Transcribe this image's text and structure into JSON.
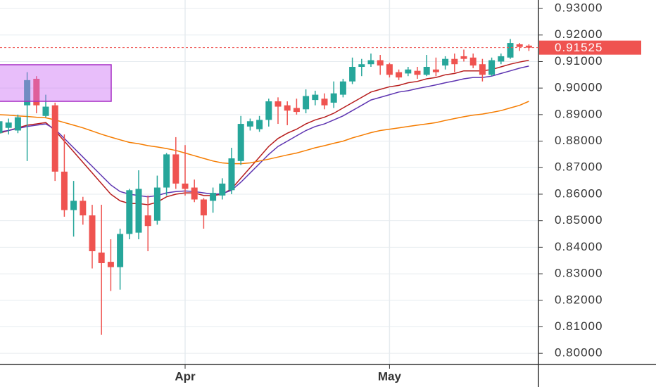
{
  "chart_data": {
    "type": "candlestick",
    "categories": [
      null,
      null,
      null,
      null,
      null,
      null,
      null,
      null,
      null,
      null,
      null,
      null,
      null,
      null,
      null,
      null,
      null,
      null,
      null,
      null,
      "Apr",
      null,
      null,
      null,
      null,
      null,
      null,
      null,
      null,
      null,
      null,
      null,
      null,
      null,
      null,
      null,
      null,
      null,
      null,
      null,
      null,
      null,
      "May",
      null,
      null,
      null,
      null,
      null,
      null,
      null,
      null,
      null,
      null,
      null,
      null,
      null,
      null,
      null
    ],
    "open": [
      0.883,
      0.885,
      0.884,
      0.8935,
      0.9035,
      0.8895,
      0.8935,
      0.8685,
      0.854,
      0.8575,
      0.852,
      0.838,
      0.8345,
      0.8325,
      0.845,
      0.8455,
      0.852,
      0.85,
      0.8625,
      0.875,
      0.864,
      0.8625,
      0.858,
      0.8575,
      0.8595,
      0.8615,
      0.8725,
      0.8855,
      0.8845,
      0.888,
      0.895,
      0.8935,
      0.8925,
      0.892,
      0.8955,
      0.896,
      0.8945,
      0.8975,
      0.9025,
      0.908,
      0.909,
      0.9105,
      0.909,
      0.906,
      0.9055,
      0.9065,
      0.905,
      0.907,
      0.9085,
      0.911,
      0.912,
      0.9115,
      0.909,
      0.905,
      0.91,
      0.9115,
      0.9165,
      0.916
    ],
    "high": [
      0.888,
      0.8885,
      0.89,
      0.906,
      0.9045,
      0.8975,
      0.8945,
      0.8825,
      0.865,
      0.859,
      0.856,
      0.856,
      0.843,
      0.847,
      0.862,
      0.869,
      0.8595,
      0.867,
      0.8755,
      0.8815,
      0.8785,
      0.8655,
      0.8585,
      0.8625,
      0.866,
      0.8775,
      0.8895,
      0.8885,
      0.8895,
      0.896,
      0.8965,
      0.895,
      0.896,
      0.8995,
      0.899,
      0.898,
      0.9025,
      0.9035,
      0.9115,
      0.911,
      0.913,
      0.9125,
      0.9095,
      0.907,
      0.908,
      0.908,
      0.9125,
      0.9115,
      0.912,
      0.913,
      0.9145,
      0.913,
      0.911,
      0.9115,
      0.913,
      0.9185,
      0.917,
      0.9165
    ],
    "low": [
      0.881,
      0.8825,
      0.883,
      0.8725,
      0.8905,
      0.889,
      0.865,
      0.8515,
      0.844,
      0.8485,
      0.832,
      0.807,
      0.8235,
      0.824,
      0.843,
      0.843,
      0.8385,
      0.8485,
      0.8595,
      0.862,
      0.8595,
      0.857,
      0.847,
      0.853,
      0.858,
      0.86,
      0.871,
      0.884,
      0.8835,
      0.8855,
      0.8865,
      0.886,
      0.89,
      0.8905,
      0.8935,
      0.892,
      0.8925,
      0.8965,
      0.9015,
      0.9045,
      0.908,
      0.905,
      0.904,
      0.903,
      0.9045,
      0.9035,
      0.9045,
      0.9045,
      0.907,
      0.906,
      0.91,
      0.9075,
      0.9025,
      0.9045,
      0.909,
      0.911,
      0.914,
      0.914
    ],
    "close": [
      0.8875,
      0.887,
      0.889,
      0.903,
      0.8935,
      0.893,
      0.8685,
      0.854,
      0.8575,
      0.852,
      0.8385,
      0.834,
      0.8325,
      0.845,
      0.8615,
      0.862,
      0.848,
      0.8625,
      0.875,
      0.864,
      0.862,
      0.858,
      0.852,
      0.8605,
      0.864,
      0.8735,
      0.8865,
      0.8875,
      0.888,
      0.895,
      0.893,
      0.8915,
      0.891,
      0.897,
      0.8975,
      0.8935,
      0.898,
      0.9025,
      0.908,
      0.909,
      0.9105,
      0.9085,
      0.905,
      0.904,
      0.907,
      0.905,
      0.908,
      0.906,
      0.911,
      0.909,
      0.911,
      0.9085,
      0.905,
      0.9105,
      0.912,
      0.917,
      0.9155,
      0.91525
    ],
    "up_color": "#26a69a",
    "down_color": "#ef5350",
    "moving_averages": [
      {
        "color": "#b71c1c",
        "values": [
          0.883,
          0.884,
          0.885,
          0.886,
          0.8865,
          0.887,
          0.884,
          0.88,
          0.876,
          0.872,
          0.868,
          0.864,
          0.86,
          0.8575,
          0.8565,
          0.8565,
          0.856,
          0.857,
          0.859,
          0.86,
          0.8605,
          0.8605,
          0.8595,
          0.8595,
          0.86,
          0.862,
          0.866,
          0.87,
          0.874,
          0.878,
          0.881,
          0.883,
          0.8845,
          0.8865,
          0.888,
          0.889,
          0.8905,
          0.8925,
          0.8945,
          0.8965,
          0.8985,
          0.8995,
          0.9005,
          0.901,
          0.902,
          0.9025,
          0.9035,
          0.904,
          0.905,
          0.9055,
          0.9065,
          0.9065,
          0.9065,
          0.907,
          0.908,
          0.909,
          0.9098,
          0.9105
        ]
      },
      {
        "color": "#5e35b1",
        "values": [
          0.8835,
          0.884,
          0.8848,
          0.8855,
          0.886,
          0.8865,
          0.8845,
          0.881,
          0.8775,
          0.874,
          0.8705,
          0.867,
          0.8635,
          0.861,
          0.86,
          0.8595,
          0.859,
          0.8595,
          0.8605,
          0.861,
          0.8612,
          0.861,
          0.8605,
          0.86,
          0.8602,
          0.8615,
          0.8645,
          0.868,
          0.8715,
          0.875,
          0.878,
          0.88,
          0.882,
          0.884,
          0.8855,
          0.8865,
          0.888,
          0.8895,
          0.8915,
          0.8935,
          0.8955,
          0.8965,
          0.8975,
          0.8985,
          0.899,
          0.8998,
          0.9005,
          0.9012,
          0.902,
          0.9027,
          0.9035,
          0.904,
          0.904,
          0.9045,
          0.9055,
          0.9065,
          0.9075,
          0.9083
        ]
      },
      {
        "color": "#f57c00",
        "values": [
          0.89,
          0.8898,
          0.8895,
          0.8893,
          0.889,
          0.8888,
          0.888,
          0.887,
          0.886,
          0.885,
          0.8838,
          0.8826,
          0.8815,
          0.8805,
          0.8795,
          0.879,
          0.8783,
          0.8778,
          0.8772,
          0.8765,
          0.8755,
          0.8745,
          0.8735,
          0.8725,
          0.8718,
          0.8715,
          0.8715,
          0.8718,
          0.8725,
          0.8732,
          0.874,
          0.8748,
          0.8755,
          0.8765,
          0.8775,
          0.8783,
          0.8792,
          0.88,
          0.8812,
          0.8822,
          0.8832,
          0.884,
          0.8845,
          0.885,
          0.8855,
          0.886,
          0.8865,
          0.887,
          0.8878,
          0.8885,
          0.8892,
          0.8898,
          0.8902,
          0.8908,
          0.8915,
          0.8925,
          0.8935,
          0.895
        ]
      }
    ],
    "ylim": [
      0.7958,
      0.9332
    ],
    "yticks": [
      {
        "value": 0.8,
        "label": "0.80000"
      },
      {
        "value": 0.81,
        "label": "0.81000"
      },
      {
        "value": 0.82,
        "label": "0.82000"
      },
      {
        "value": 0.83,
        "label": "0.83000"
      },
      {
        "value": 0.84,
        "label": "0.84000"
      },
      {
        "value": 0.85,
        "label": "0.85000"
      },
      {
        "value": 0.86,
        "label": "0.86000"
      },
      {
        "value": 0.87,
        "label": "0.87000"
      },
      {
        "value": 0.88,
        "label": "0.88000"
      },
      {
        "value": 0.89,
        "label": "0.89000"
      },
      {
        "value": 0.9,
        "label": "0.90000"
      },
      {
        "value": 0.91,
        "label": "0.91000"
      },
      {
        "value": 0.92,
        "label": "0.92000"
      },
      {
        "value": 0.93,
        "label": "0.93000"
      }
    ],
    "last_price": 0.91525,
    "last_price_color": "#ef5350",
    "grid": true
  }
}
